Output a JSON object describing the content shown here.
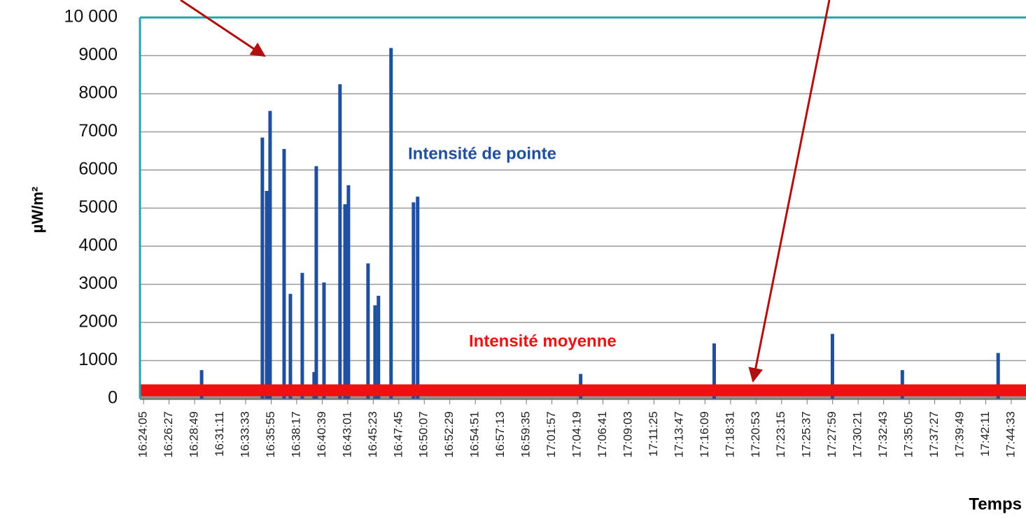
{
  "chart_data": {
    "type": "bar",
    "y_label": "µW/m²",
    "x_label": "Temps",
    "xlim": [
      "16:23:45",
      "17:45:55"
    ],
    "xticks": [
      "16:24:05",
      "16:26:27",
      "16:28:49",
      "16:31:11",
      "16:33:33",
      "16:35:55",
      "16:38:17",
      "16:40:39",
      "16:43:01",
      "16:45:23",
      "16:47:45",
      "16:50:07",
      "16:52:29",
      "16:54:51",
      "16:57:13",
      "16:59:35",
      "17:01:57",
      "17:04:19",
      "17:06:41",
      "17:09:03",
      "17:11:25",
      "17:13:47",
      "17:16:09",
      "17:18:31",
      "17:20:53",
      "17:23:15",
      "17:25:37",
      "17:27:59",
      "17:30:21",
      "17:32:43",
      "17:35:05",
      "17:37:27",
      "17:39:49",
      "17:42:11",
      "17:44:33"
    ],
    "ylim": [
      0,
      10000
    ],
    "yticks": [
      0,
      1000,
      2000,
      3000,
      4000,
      5000,
      6000,
      7000,
      8000,
      9000,
      {
        "value": 10000,
        "label": "10 000"
      }
    ],
    "grid": true,
    "series": [
      {
        "name": "Intensité de pointe",
        "color": "#1f4fa0",
        "x": [
          "16:29:28",
          "16:35:06",
          "16:35:30",
          "16:35:49",
          "16:37:07",
          "16:37:42",
          "16:38:48",
          "16:39:54",
          "16:40:06",
          "16:40:49",
          "16:42:18",
          "16:42:46",
          "16:43:05",
          "16:44:54",
          "16:45:33",
          "16:45:52",
          "16:47:02",
          "16:49:07",
          "16:49:30",
          "17:04:37",
          "17:17:00",
          "17:27:58",
          "17:34:27",
          "17:43:20"
        ],
        "values": [
          750,
          6850,
          5450,
          7550,
          6550,
          2750,
          3300,
          700,
          6100,
          3050,
          8250,
          5100,
          5600,
          3550,
          2450,
          2700,
          9200,
          5150,
          5300,
          650,
          1450,
          1700,
          750,
          1200
        ]
      },
      {
        "name": "Intensité moyenne",
        "color": "#ee1111",
        "x": [
          "16:23:45",
          "17:45:55"
        ],
        "values": [
          220,
          220
        ]
      }
    ]
  }
}
